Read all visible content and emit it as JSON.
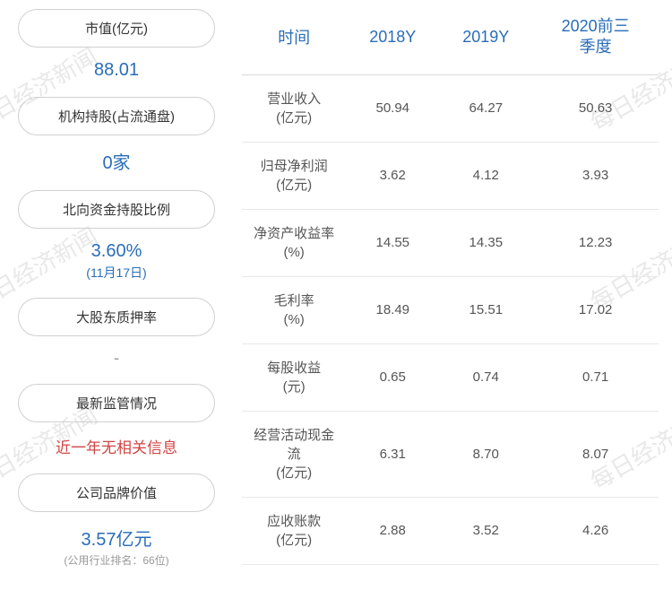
{
  "watermark_text": "每日经济新闻",
  "left_panel": {
    "items": [
      {
        "label": "市值(亿元)",
        "value": "88.01",
        "type": "blue"
      },
      {
        "label": "机构持股(占流通盘)",
        "value": "0家",
        "type": "blue"
      },
      {
        "label": "北向资金持股比例",
        "value": "3.60%",
        "sub": "(11月17日)",
        "type": "blue"
      },
      {
        "label": "大股东质押率",
        "value": "-",
        "type": "dash"
      },
      {
        "label": "最新监管情况",
        "value": "近一年无相关信息",
        "type": "red"
      },
      {
        "label": "公司品牌价值",
        "value": "3.57亿元",
        "caption": "(公用行业排名：66位)",
        "type": "blue"
      }
    ]
  },
  "table": {
    "headers": [
      "时间",
      "2018Y",
      "2019Y",
      "2020前三\n季度"
    ],
    "rows": [
      {
        "label": "营业收入\n(亿元)",
        "c1": "50.94",
        "c2": "64.27",
        "c3": "50.63"
      },
      {
        "label": "归母净利润\n(亿元)",
        "c1": "3.62",
        "c2": "4.12",
        "c3": "3.93"
      },
      {
        "label": "净资产收益率\n(%)",
        "c1": "14.55",
        "c2": "14.35",
        "c3": "12.23"
      },
      {
        "label": "毛利率\n(%)",
        "c1": "18.49",
        "c2": "15.51",
        "c3": "17.02"
      },
      {
        "label": "每股收益\n(元)",
        "c1": "0.65",
        "c2": "0.74",
        "c3": "0.71"
      },
      {
        "label": "经营活动现金流\n(亿元)",
        "c1": "6.31",
        "c2": "8.70",
        "c3": "8.07"
      },
      {
        "label": "应收账款\n(亿元)",
        "c1": "2.88",
        "c2": "3.52",
        "c3": "4.26"
      }
    ]
  },
  "colors": {
    "header_blue": "#2a6db8",
    "value_blue": "#2a6db8",
    "value_red": "#d14545",
    "border": "#d0d0d0",
    "row_border": "#e8e8e8",
    "text": "#555"
  }
}
